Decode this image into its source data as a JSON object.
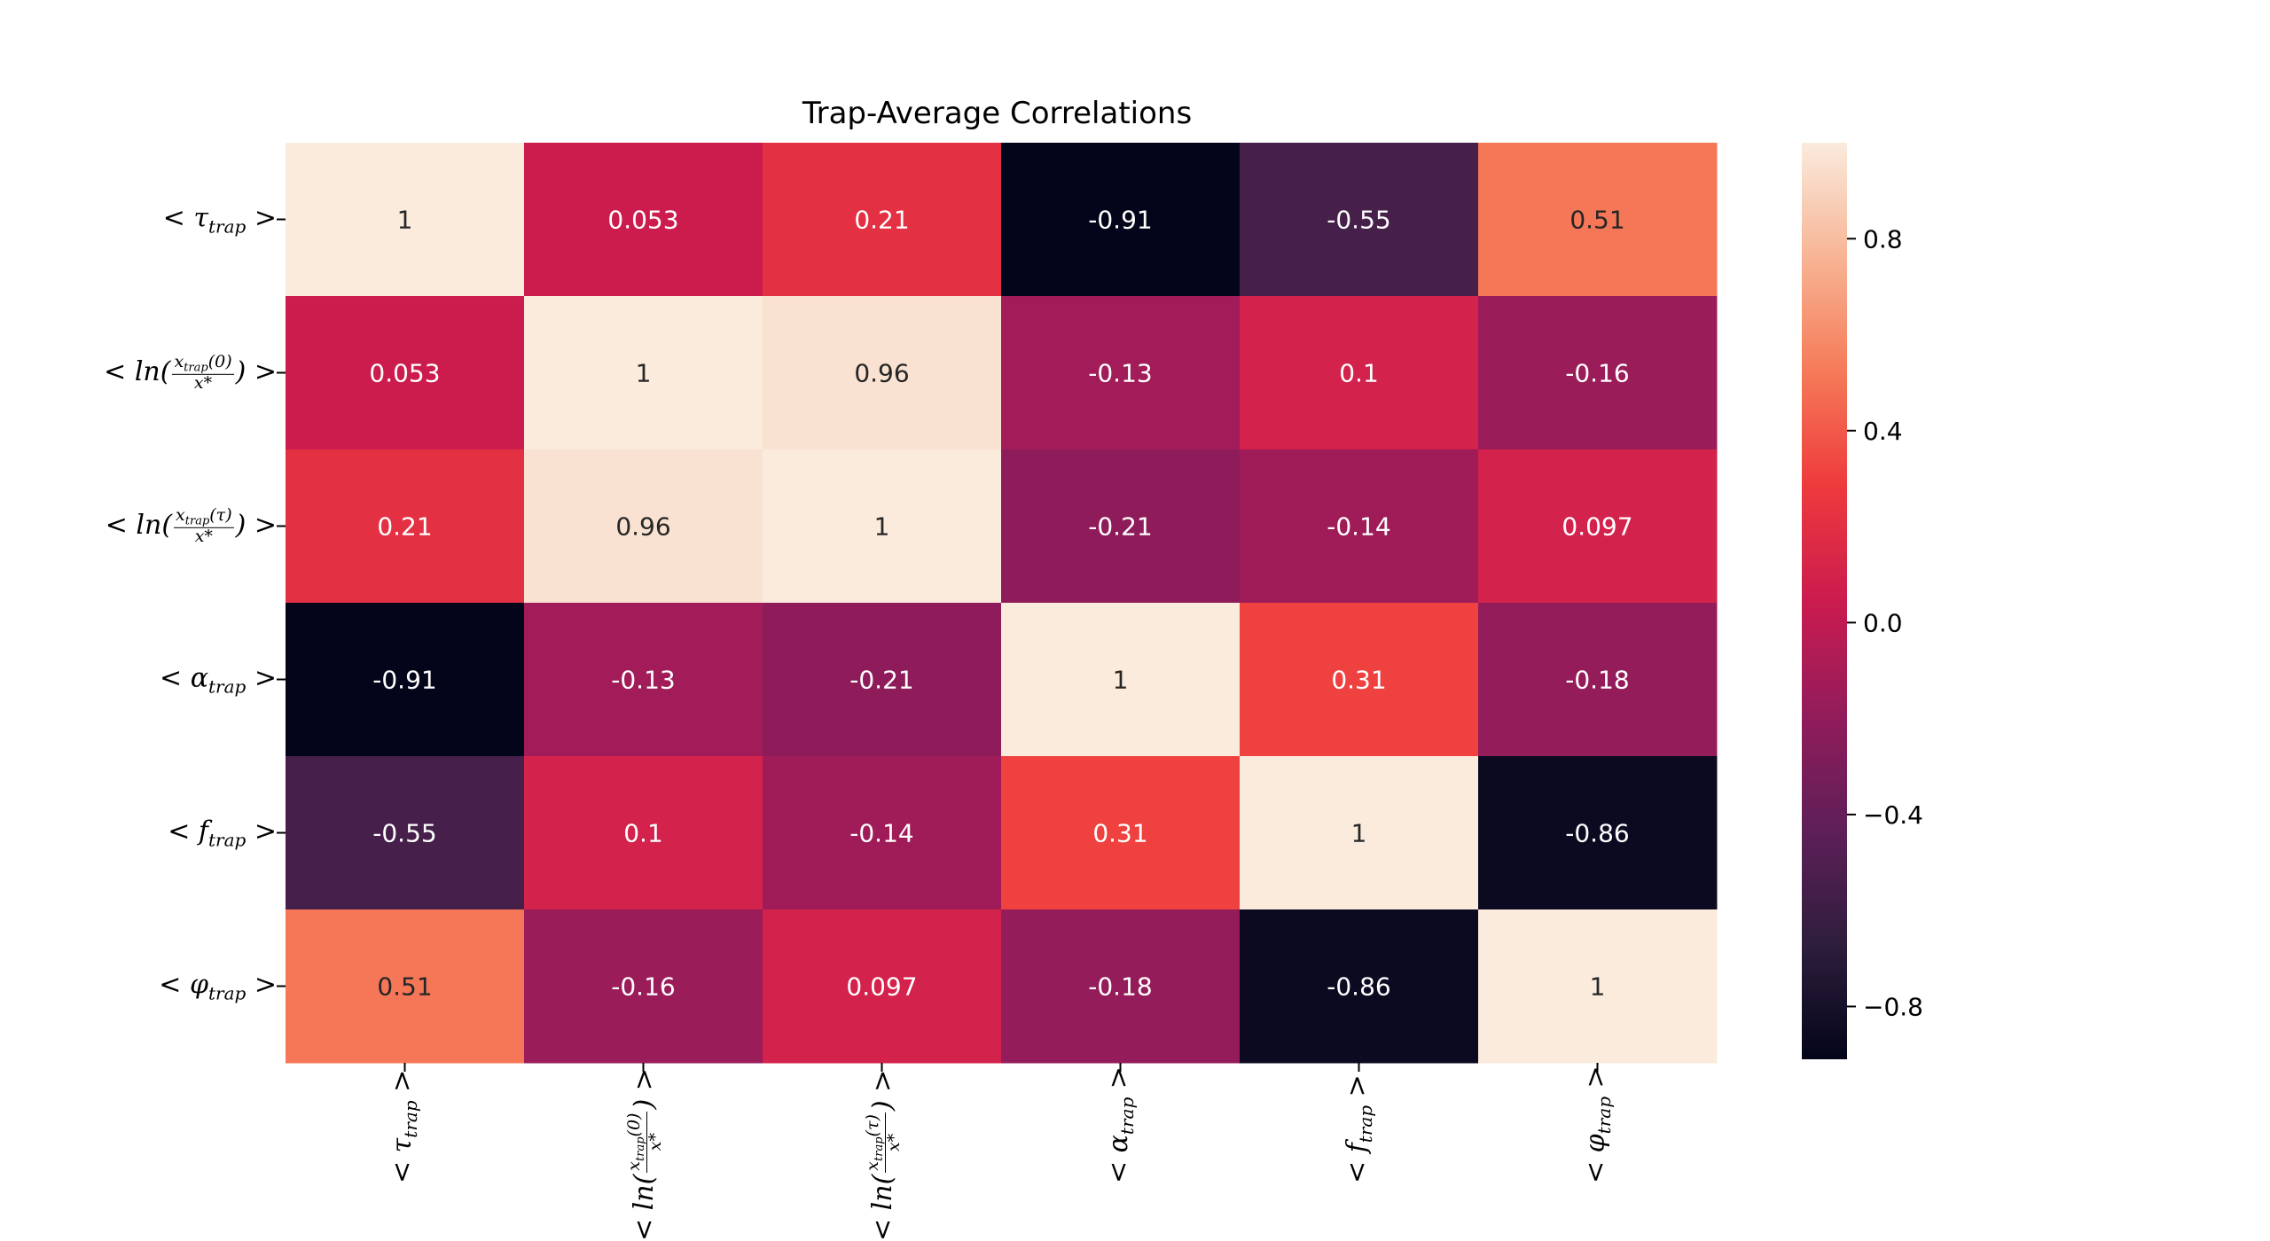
{
  "chart_data": {
    "type": "heatmap",
    "title": "Trap-Average Correlations",
    "row_labels": [
      "< τ_trap >",
      "< ln(x_trap(0)/x*) >",
      "< ln(x_trap(τ)/x*) >",
      "< α_trap >",
      "< f_trap >",
      "< φ_trap >"
    ],
    "col_labels": [
      "< τ_trap >",
      "< ln(x_trap(0)/x*) >",
      "< ln(x_trap(τ)/x*) >",
      "< α_trap >",
      "< f_trap >",
      "< φ_trap >"
    ],
    "values": [
      [
        1,
        0.053,
        0.21,
        -0.91,
        -0.55,
        0.51
      ],
      [
        0.053,
        1,
        0.96,
        -0.13,
        0.1,
        -0.16
      ],
      [
        0.21,
        0.96,
        1,
        -0.21,
        -0.14,
        0.097
      ],
      [
        -0.91,
        -0.13,
        -0.21,
        1,
        0.31,
        -0.18
      ],
      [
        -0.55,
        0.1,
        -0.14,
        0.31,
        1,
        -0.86
      ],
      [
        0.51,
        -0.16,
        0.097,
        -0.18,
        -0.86,
        1
      ]
    ],
    "cell_labels": [
      [
        "1",
        "0.053",
        "0.21",
        "-0.91",
        "-0.55",
        "0.51"
      ],
      [
        "0.053",
        "1",
        "0.96",
        "-0.13",
        "0.1",
        "-0.16"
      ],
      [
        "0.21",
        "0.96",
        "1",
        "-0.21",
        "-0.14",
        "0.097"
      ],
      [
        "-0.91",
        "-0.13",
        "-0.21",
        "1",
        "0.31",
        "-0.18"
      ],
      [
        "-0.55",
        "0.1",
        "-0.14",
        "0.31",
        "1",
        "-0.86"
      ],
      [
        "0.51",
        "-0.16",
        "0.097",
        "-0.18",
        "-0.86",
        "1"
      ]
    ],
    "colormap": "rocket",
    "colorbar": {
      "vmin": -0.91,
      "vmax": 1,
      "ticks": [
        0.8,
        0.4,
        0.0,
        -0.4,
        -0.8
      ],
      "tick_labels": [
        "0.8",
        "0.4",
        "0.0",
        "−0.4",
        "−0.8"
      ]
    }
  }
}
